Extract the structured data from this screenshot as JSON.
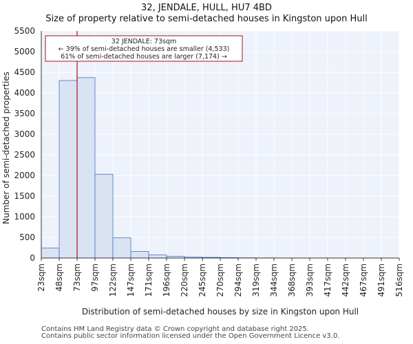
{
  "header": {
    "title_line1": "32, JENDALE, HULL, HU7 4BD",
    "title_line2": "Size of property relative to semi-detached houses in Kingston upon Hull"
  },
  "footer": {
    "line1": "Contains HM Land Registry data © Crown copyright and database right 2025.",
    "line2": "Contains public sector information licensed under the Open Government Licence v3.0."
  },
  "chart_data": {
    "type": "bar",
    "title": "32, JENDALE, HULL, HU7 4BD",
    "subtitle": "Size of property relative to semi-detached houses in Kingston upon Hull",
    "xlabel": "Distribution of semi-detached houses by size in Kingston upon Hull",
    "ylabel": "Number of semi-detached properties",
    "bin_edges": [
      "23sqm",
      "48sqm",
      "73sqm",
      "97sqm",
      "122sqm",
      "147sqm",
      "171sqm",
      "196sqm",
      "220sqm",
      "245sqm",
      "270sqm",
      "294sqm",
      "319sqm",
      "344sqm",
      "368sqm",
      "393sqm",
      "417sqm",
      "442sqm",
      "467sqm",
      "491sqm",
      "516sqm"
    ],
    "values": [
      240,
      4300,
      4370,
      2030,
      490,
      160,
      75,
      40,
      20,
      15,
      10,
      5,
      3,
      2,
      1,
      1,
      1,
      0,
      0,
      0
    ],
    "ylim": [
      0,
      5500
    ],
    "yticks": [
      0,
      500,
      1000,
      1500,
      2000,
      2500,
      3000,
      3500,
      4000,
      4500,
      5000,
      5500
    ],
    "grid": true,
    "bar_fill": "#dae3f3",
    "bar_stroke": "#4472c4",
    "marker_color": "#aa1111",
    "marker_value": "73sqm",
    "annotation": {
      "lines": [
        "32 JENDALE: 73sqm",
        "← 39% of semi-detached houses are smaller (4,533)",
        "61% of semi-detached houses are larger (7,174) →"
      ]
    }
  }
}
